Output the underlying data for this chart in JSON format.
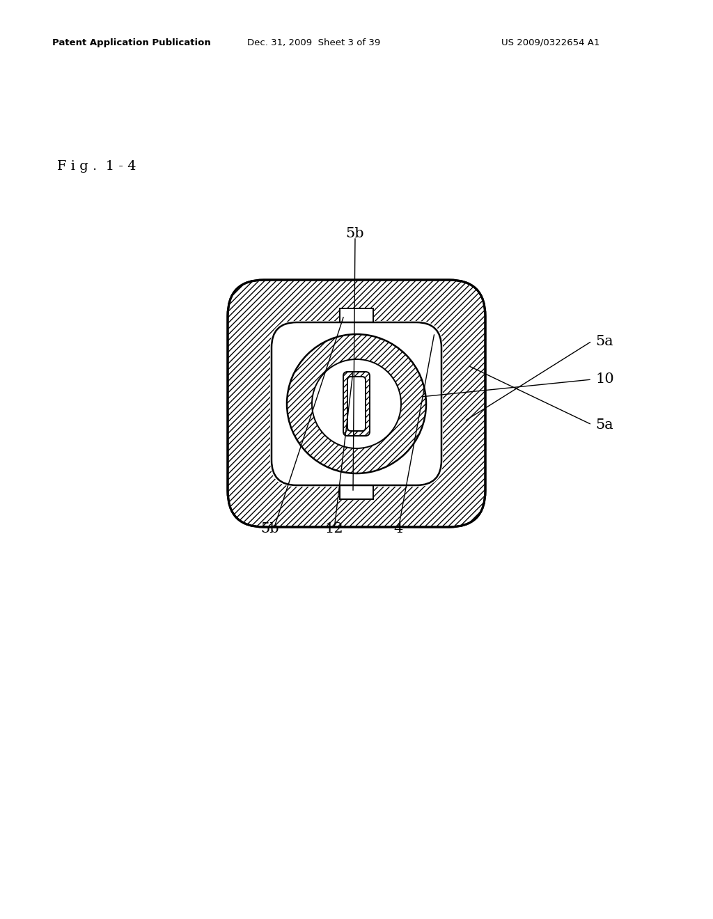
{
  "bg_color": "#ffffff",
  "header_text": "Patent Application Publication",
  "header_date": "Dec. 31, 2009  Sheet 3 of 39",
  "header_patent": "US 2009/0322654 A1",
  "fig_label": "F i g .  1 - 4"
}
